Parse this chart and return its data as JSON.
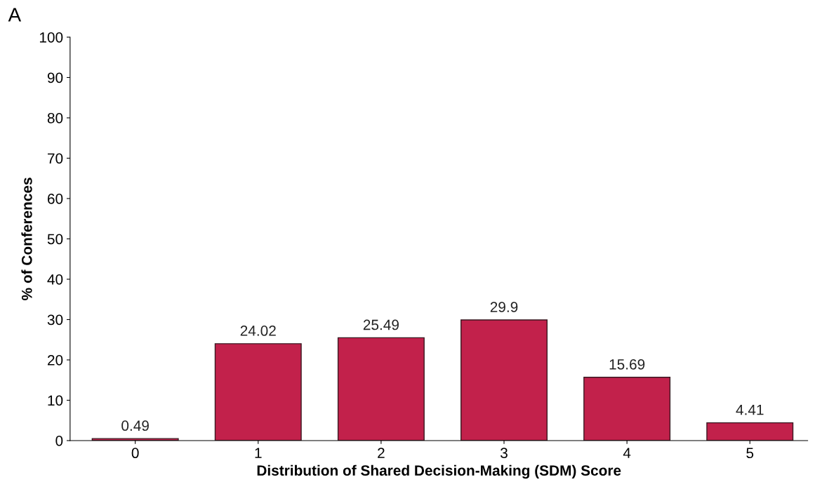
{
  "chart_data": {
    "type": "bar",
    "xlabel": "Distribution of Shared Decision-Making (SDM) Score",
    "ylabel": "% of Conferences",
    "annotations": [
      "A"
    ],
    "categories": [
      "0",
      "1",
      "2",
      "3",
      "4",
      "5"
    ],
    "values": [
      0.49,
      24.02,
      25.49,
      29.9,
      15.69,
      4.41
    ],
    "color": "#c2214b",
    "data_labels": true,
    "ylim": [
      0,
      100
    ],
    "yticks": [
      0,
      10,
      20,
      30,
      40,
      50,
      60,
      70,
      80,
      90,
      100
    ],
    "grid": false,
    "legend": false
  }
}
